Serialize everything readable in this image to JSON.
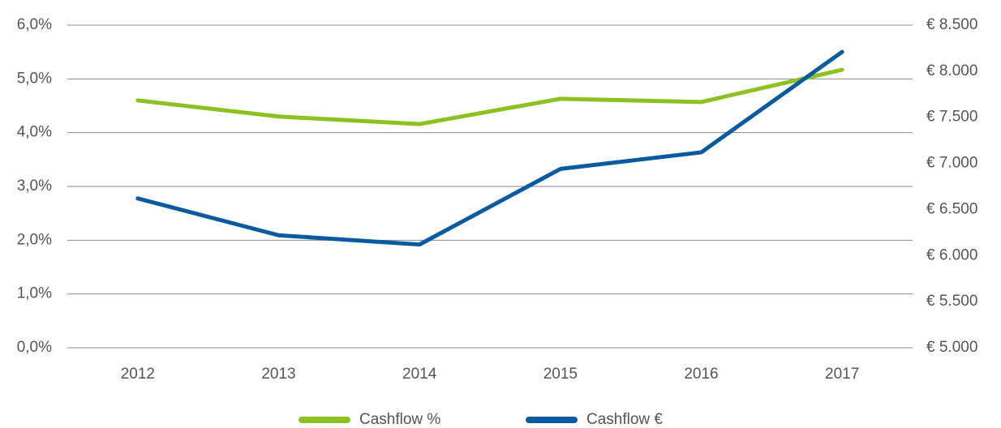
{
  "chart_data": {
    "type": "line",
    "categories": [
      "2012",
      "2013",
      "2014",
      "2015",
      "2016",
      "2017"
    ],
    "series": [
      {
        "name": "Cashflow %",
        "color": "#8dc021",
        "values": [
          4.6,
          4.3,
          4.16,
          4.63,
          4.57,
          5.17
        ]
      },
      {
        "name": "Cashflow €",
        "color": "#0a5aa0",
        "axis": "y2",
        "values": [
          6620,
          6220,
          6120,
          6940,
          7120,
          8210
        ]
      }
    ],
    "ylim": [
      0,
      6
    ],
    "yticks": [
      {
        "value": 0,
        "label": "0,0%"
      },
      {
        "value": 1,
        "label": "1,0%"
      },
      {
        "value": 2,
        "label": "2,0%"
      },
      {
        "value": 3,
        "label": "3,0%"
      },
      {
        "value": 4,
        "label": "4,0%"
      },
      {
        "value": 5,
        "label": "5,0%"
      },
      {
        "value": 6,
        "label": "6,0%"
      }
    ],
    "y2lim": [
      5000,
      8500
    ],
    "y2ticks": [
      {
        "value": 5000,
        "label": "€ 5.000"
      },
      {
        "value": 5500,
        "label": "€ 5.500"
      },
      {
        "value": 6000,
        "label": "€ 6.000"
      },
      {
        "value": 6500,
        "label": "€ 6.500"
      },
      {
        "value": 7000,
        "label": "€ 7.000"
      },
      {
        "value": 7500,
        "label": "€ 7.500"
      },
      {
        "value": 8000,
        "label": "€ 8.000"
      },
      {
        "value": 8500,
        "label": "€ 8.500"
      }
    ],
    "grid": true,
    "legend": "bottom"
  }
}
